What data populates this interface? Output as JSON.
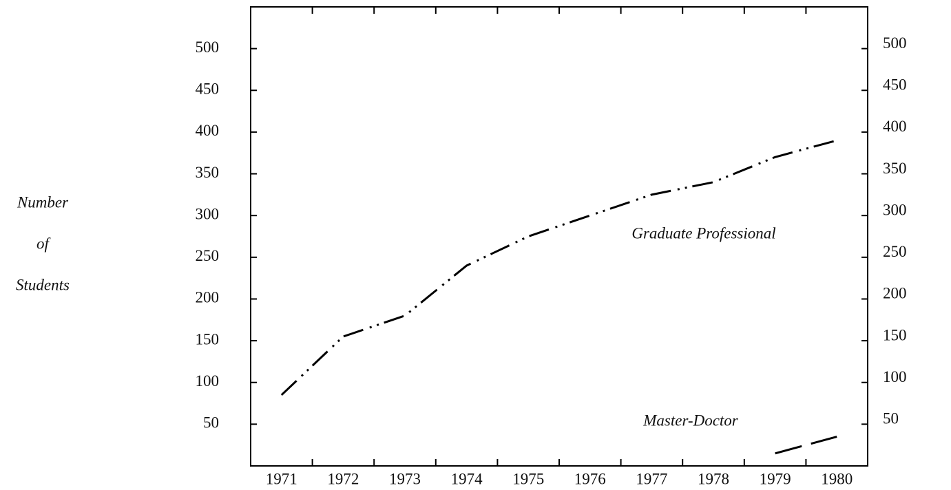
{
  "chart_data": {
    "type": "line",
    "ylabel": [
      "Number",
      "of",
      "Students"
    ],
    "categories": [
      "1971",
      "1972",
      "1973",
      "1974",
      "1975",
      "1976",
      "1977",
      "1978",
      "1979",
      "1980"
    ],
    "series": [
      {
        "name": "Graduate Professional",
        "color": "#000000",
        "dash": "30 10 3 8 3 8",
        "values": [
          85,
          155,
          180,
          240,
          275,
          300,
          325,
          340,
          370,
          390
        ]
      },
      {
        "name": "Master-Doctor",
        "color": "#000000",
        "dash": "40 14",
        "values": [
          null,
          null,
          null,
          null,
          null,
          null,
          null,
          null,
          15,
          35
        ]
      }
    ],
    "ylim": [
      0,
      550
    ],
    "yticks": [
      50,
      100,
      150,
      200,
      250,
      300,
      350,
      400,
      450,
      500
    ],
    "y2lim": [
      0,
      550
    ],
    "y2ticks": [
      50,
      100,
      150,
      200,
      250,
      300,
      350,
      400,
      450,
      500
    ],
    "grid": false
  }
}
